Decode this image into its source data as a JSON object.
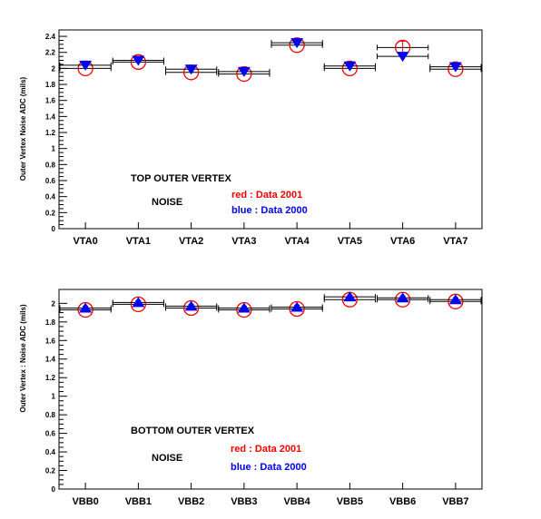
{
  "chart_data": [
    {
      "type": "scatter",
      "ylabel": "Outer Vertex Noise ADC (mils)",
      "categories": [
        "VTA0",
        "VTA1",
        "VTA2",
        "VTA3",
        "VTA4",
        "VTA5",
        "VTA6",
        "VTA7"
      ],
      "ylim": [
        0,
        2.48
      ],
      "yticks": [
        "0",
        "0.2",
        "0.4",
        "0.6",
        "0.8",
        "1",
        "1.2",
        "1.4",
        "1.6",
        "1.8",
        "2",
        "2.2",
        "2.4"
      ],
      "annotations": {
        "title": "TOP OUTER VERTEX",
        "subtitle": "NOISE",
        "legend_red": "red  : Data 2001",
        "legend_blue": "blue  : Data 2000"
      },
      "colors": {
        "red": "#ee0000",
        "blue": "#0000ee"
      },
      "series": [
        {
          "name": "Data 2001",
          "color": "red",
          "marker": "open-circle",
          "values": [
            2.0,
            2.08,
            1.95,
            1.93,
            2.29,
            2.0,
            2.26,
            1.99
          ],
          "errors": [
            0.02,
            0.02,
            0.02,
            0.02,
            0.02,
            0.02,
            0.08,
            0.02
          ]
        },
        {
          "name": "Data 2000",
          "color": "blue",
          "marker": "triangle-down",
          "values": [
            2.04,
            2.1,
            1.99,
            1.96,
            2.32,
            2.03,
            2.15,
            2.02
          ],
          "errors": [
            0.02,
            0.02,
            0.02,
            0.02,
            0.02,
            0.02,
            0.02,
            0.02
          ]
        }
      ]
    },
    {
      "type": "scatter",
      "ylabel": "Outer Vertex : Noise ADC (mils)",
      "categories": [
        "VBB0",
        "VBB1",
        "VBB2",
        "VBB3",
        "VBB4",
        "VBB5",
        "VBB6",
        "VBB7"
      ],
      "ylim": [
        0,
        2.15
      ],
      "yticks": [
        "0",
        "0.2",
        "0.4",
        "0.6",
        "0.8",
        "1",
        "1.2",
        "1.4",
        "1.6",
        "1.8",
        "2"
      ],
      "annotations": {
        "title": "BOTTOM OUTER VERTEX",
        "subtitle": "NOISE",
        "legend_red": "red   : Data 2001",
        "legend_blue": "blue   : Data 2000"
      },
      "colors": {
        "red": "#ee0000",
        "blue": "#0000ee"
      },
      "series": [
        {
          "name": "Data 2001",
          "color": "red",
          "marker": "open-circle",
          "values": [
            1.93,
            1.99,
            1.95,
            1.93,
            1.94,
            2.04,
            2.04,
            2.02
          ],
          "errors": [
            0.02,
            0.02,
            0.02,
            0.02,
            0.02,
            0.02,
            0.02,
            0.02
          ]
        },
        {
          "name": "Data 2000",
          "color": "blue",
          "marker": "triangle-up",
          "values": [
            1.95,
            2.01,
            1.97,
            1.95,
            1.96,
            2.07,
            2.06,
            2.04
          ],
          "errors": [
            0.02,
            0.02,
            0.02,
            0.02,
            0.02,
            0.02,
            0.02,
            0.02
          ]
        }
      ]
    }
  ]
}
